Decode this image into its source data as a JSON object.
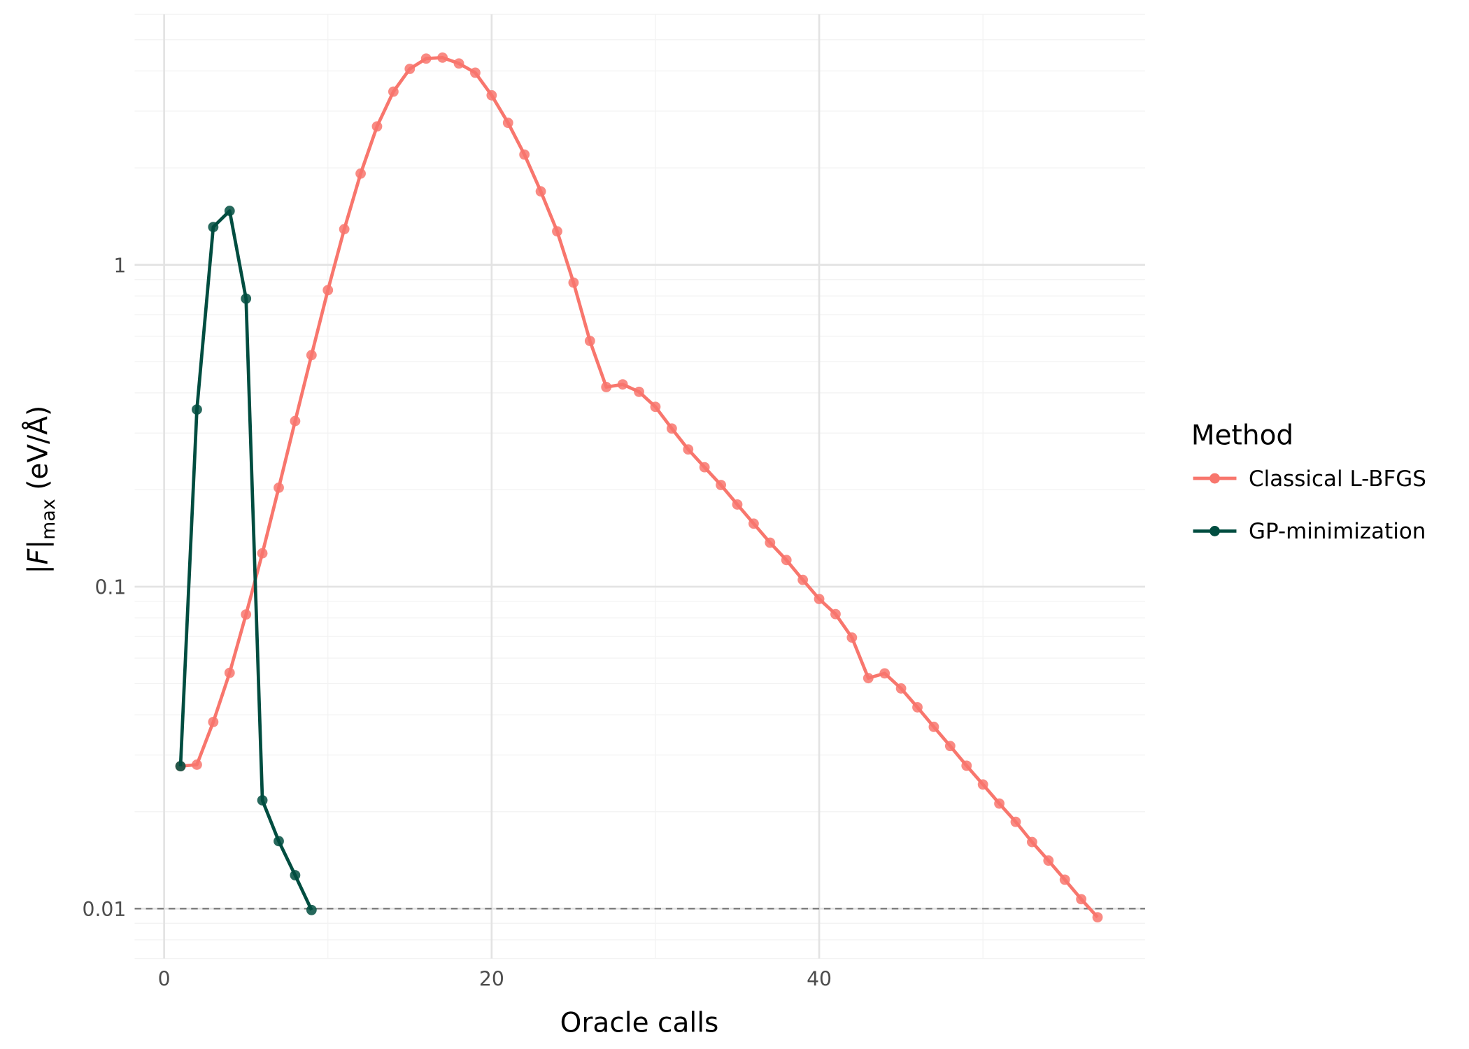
{
  "chart_data": {
    "type": "line",
    "title": "",
    "xlabel": "Oracle calls",
    "ylabel": {
      "main": "|F|",
      "sub": "max",
      "units": " (eV/Å)"
    },
    "yscale": "log10",
    "xlim": [
      -1.8,
      59.9
    ],
    "ylim": [
      0.007,
      6.0
    ],
    "x_ticks": [
      {
        "value": 0,
        "label": "0"
      },
      {
        "value": 20,
        "label": "20"
      },
      {
        "value": 40,
        "label": "40"
      }
    ],
    "y_ticks": [
      {
        "value": 0.01,
        "label": "0.01"
      },
      {
        "value": 0.1,
        "label": "0.1"
      },
      {
        "value": 1,
        "label": "1"
      }
    ],
    "grid": true,
    "reference_line": {
      "y": 0.01,
      "style": "dashed",
      "color": "#808080"
    },
    "legend": {
      "title": "Method",
      "placement": "right"
    },
    "series": [
      {
        "name": "Classical L-BFGS",
        "color": "#F8766D",
        "x": [
          1,
          2,
          3,
          4,
          5,
          6,
          7,
          8,
          9,
          10,
          11,
          12,
          13,
          14,
          15,
          16,
          17,
          18,
          19,
          20,
          21,
          22,
          23,
          24,
          25,
          26,
          27,
          28,
          29,
          30,
          31,
          32,
          33,
          34,
          35,
          36,
          37,
          38,
          39,
          40,
          41,
          42,
          43,
          44,
          45,
          46,
          47,
          48,
          49,
          50,
          51,
          52,
          53,
          54,
          55,
          56,
          57
        ],
        "y": [
          0.0277,
          0.028,
          0.038,
          0.054,
          0.082,
          0.127,
          0.203,
          0.327,
          0.524,
          0.834,
          1.29,
          1.92,
          2.69,
          3.45,
          4.06,
          4.37,
          4.4,
          4.22,
          3.95,
          3.36,
          2.76,
          2.2,
          1.69,
          1.27,
          0.88,
          0.58,
          0.417,
          0.425,
          0.403,
          0.362,
          0.31,
          0.267,
          0.235,
          0.207,
          0.18,
          0.157,
          0.137,
          0.121,
          0.105,
          0.0916,
          0.0822,
          0.0695,
          0.052,
          0.0538,
          0.0483,
          0.0422,
          0.0367,
          0.032,
          0.0278,
          0.0243,
          0.0212,
          0.0186,
          0.0161,
          0.0141,
          0.0123,
          0.0107,
          0.0094
        ]
      },
      {
        "name": "GP-minimization",
        "color": "#004D40",
        "x": [
          1,
          2,
          3,
          4,
          5,
          6,
          7,
          8,
          9
        ],
        "y": [
          0.0277,
          0.355,
          1.31,
          1.47,
          0.785,
          0.0217,
          0.0162,
          0.0127,
          0.0099
        ]
      }
    ]
  }
}
